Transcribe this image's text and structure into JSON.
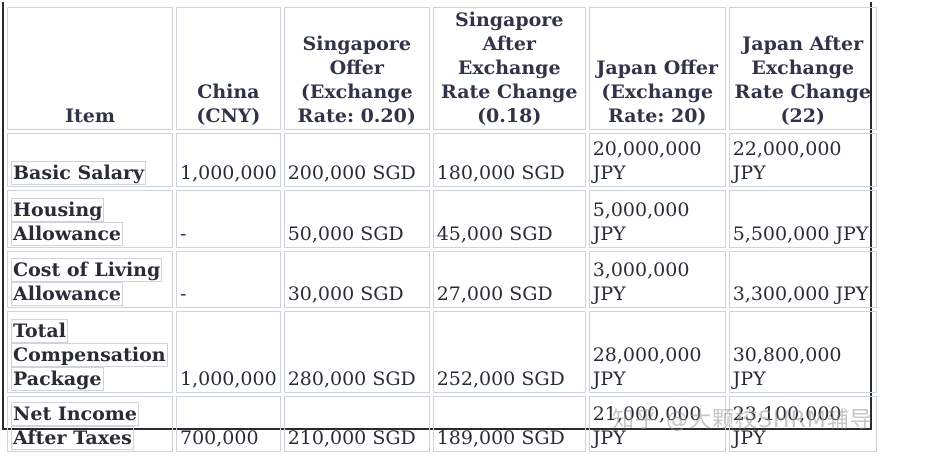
{
  "table": {
    "headers": [
      "Item",
      "China (CNY)",
      "Singapore Offer (Exchange Rate: 0.20)",
      "Singapore After Exchange Rate Change (0.18)",
      "Japan Offer (Exchange Rate: 20)",
      "Japan After Exchange Rate Change (22)"
    ],
    "rows": [
      [
        "Basic Salary",
        "1,000,000",
        "200,000 SGD",
        "180,000 SGD",
        "20,000,000 JPY",
        "22,000,000 JPY"
      ],
      [
        "Housing Allowance",
        "-",
        "50,000 SGD",
        "45,000 SGD",
        "5,000,000 JPY",
        "5,500,000 JPY"
      ],
      [
        "Cost of Living Allowance",
        "-",
        "30,000 SGD",
        "27,000 SGD",
        "3,000,000 JPY",
        "3,300,000 JPY"
      ],
      [
        "Total Compensation Package",
        "1,000,000",
        "280,000 SGD",
        "252,000 SGD",
        "28,000,000 JPY",
        "30,800,000 JPY"
      ],
      [
        "Net Income After Taxes",
        "700,000",
        "210,000 SGD",
        "189,000 SGD",
        "21,000,000 JPY",
        "23,100,000 JPY"
      ]
    ]
  },
  "watermark": "知乎 @大颗校SHRM辅导"
}
